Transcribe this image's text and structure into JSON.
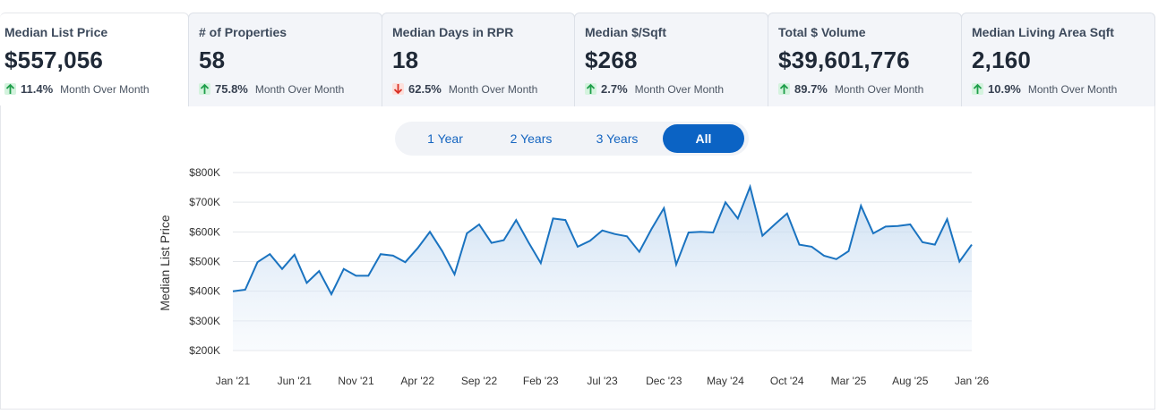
{
  "tabs": [
    {
      "label": "Median List Price",
      "value": "$557,056",
      "change": "11.4%",
      "direction": "up",
      "period": "Month Over Month"
    },
    {
      "label": "# of Properties",
      "value": "58",
      "change": "75.8%",
      "direction": "up",
      "period": "Month Over Month"
    },
    {
      "label": "Median Days in RPR",
      "value": "18",
      "change": "62.5%",
      "direction": "down",
      "period": "Month Over Month"
    },
    {
      "label": "Median $/Sqft",
      "value": "$268",
      "change": "2.7%",
      "direction": "up",
      "period": "Month Over Month"
    },
    {
      "label": "Total $ Volume",
      "value": "$39,601,776",
      "change": "89.7%",
      "direction": "up",
      "period": "Month Over Month"
    },
    {
      "label": "Median Living Area Sqft",
      "value": "2,160",
      "change": "10.9%",
      "direction": "up",
      "period": "Month Over Month"
    }
  ],
  "range": {
    "options": [
      "1 Year",
      "2 Years",
      "3 Years",
      "All"
    ],
    "selected": "All"
  },
  "colors": {
    "line": "#1a73c0",
    "up": "#1e9e4a",
    "down": "#d93025",
    "selected": "#0b63c4"
  },
  "chart_data": {
    "type": "area",
    "title": "",
    "ylabel": "Median List Price",
    "xlabel": "",
    "ylim": [
      200000,
      800000
    ],
    "yticks": [
      200000,
      300000,
      400000,
      500000,
      600000,
      700000,
      800000
    ],
    "ytick_labels": [
      "$200K",
      "$300K",
      "$400K",
      "$500K",
      "$600K",
      "$700K",
      "$800K"
    ],
    "xtick_labels": [
      "Jan '21",
      "Jun '21",
      "Nov '21",
      "Apr '22",
      "Sep '22",
      "Feb '23",
      "Jul '23",
      "Dec '23",
      "May '24",
      "Oct '24",
      "Mar '25",
      "Aug '25",
      "Jan '26"
    ],
    "xtick_index": [
      0,
      5,
      10,
      15,
      20,
      25,
      30,
      35,
      40,
      45,
      50,
      55,
      60
    ],
    "grid": true,
    "series": [
      {
        "name": "Median List Price",
        "values": [
          400000,
          405000,
          498000,
          525000,
          475000,
          523000,
          428000,
          468000,
          390000,
          475000,
          452000,
          452000,
          525000,
          520000,
          498000,
          545000,
          600000,
          535000,
          457000,
          595000,
          625000,
          563000,
          572000,
          640000,
          565000,
          495000,
          645000,
          640000,
          550000,
          570000,
          605000,
          593000,
          585000,
          533000,
          610000,
          680000,
          490000,
          598000,
          600000,
          598000,
          700000,
          645000,
          752000,
          587000,
          625000,
          662000,
          557000,
          550000,
          520000,
          508000,
          535000,
          688000,
          595000,
          618000,
          620000,
          625000,
          565000,
          557000,
          643000,
          500000,
          557000
        ]
      }
    ]
  }
}
